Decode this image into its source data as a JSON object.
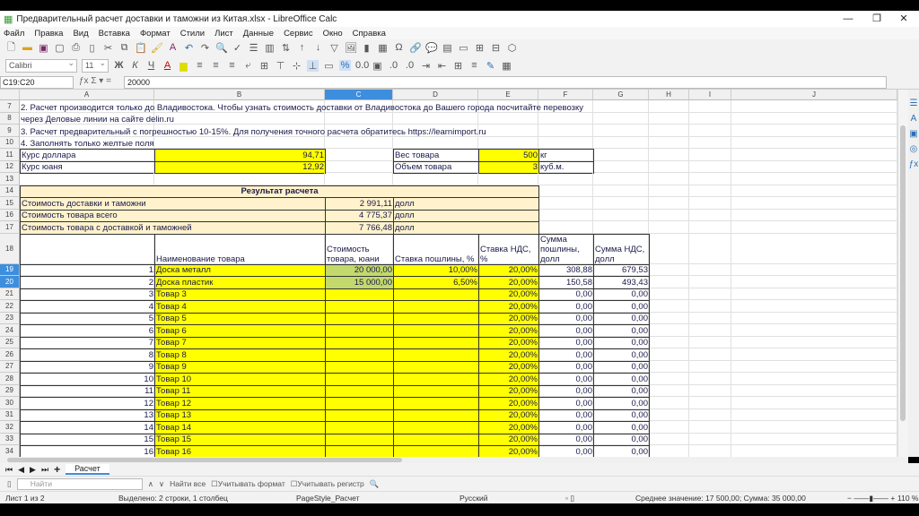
{
  "window": {
    "title": "Предварительный расчет доставки и таможни из Китая.xlsx - LibreOffice Calc"
  },
  "menu": [
    "Файл",
    "Правка",
    "Вид",
    "Вставка",
    "Формат",
    "Стили",
    "Лист",
    "Данные",
    "Сервис",
    "Окно",
    "Справка"
  ],
  "toolbar2": {
    "font": "Calibri",
    "size": "11"
  },
  "formula_bar": {
    "name_box": "C19:C20",
    "value": "20000"
  },
  "columns": [
    "A",
    "B",
    "C",
    "D",
    "E",
    "F",
    "G",
    "H",
    "I",
    "J"
  ],
  "active_column": "C",
  "rows": [
    {
      "n": "7",
      "cells": {
        "A": "2. Расчет производится только до Владивостока. Чтобы узнать стоимость доставки от Владивостока до Вашего города посчитайте перевозку"
      }
    },
    {
      "n": "8",
      "cells": {
        "A": "через Деловые линии на сайте delin.ru"
      }
    },
    {
      "n": "9",
      "cells": {
        "A": "3. Расчет предварительный с погрешностью 10-15%. Для получения точного расчета обратитесь https://learnimport.ru"
      }
    },
    {
      "n": "10",
      "cells": {
        "A": "4. Заполнять только желтые поля"
      }
    },
    {
      "n": "11",
      "cells": {
        "A": "Курс доллара",
        "B": "94,71",
        "D": "Вес товара",
        "E": "500",
        "F": "кг"
      }
    },
    {
      "n": "12",
      "cells": {
        "A": "Курс юаня",
        "B": "12,92",
        "D": "Объем товара",
        "E": "3",
        "F": "куб.м."
      }
    },
    {
      "n": "13",
      "cells": {}
    },
    {
      "n": "14",
      "cells": {
        "A": "Результат расчета"
      }
    },
    {
      "n": "15",
      "cells": {
        "A": "Стоимость доставки и таможни",
        "C": "2 991,11",
        "D": "долл"
      }
    },
    {
      "n": "16",
      "cells": {
        "A": "Стоимость товара всего",
        "C": "4 775,37",
        "D": "долл"
      }
    },
    {
      "n": "17",
      "cells": {
        "A": "Стоимость товара с доставкой и таможней",
        "C": "7 766,48",
        "D": "долл"
      }
    },
    {
      "n": "18",
      "cells": {
        "B": "Наименование товара",
        "C": "Стоимость товара, юани",
        "D": "Ставка пошлины, %",
        "E": "Ставка НДС, %",
        "F": "Сумма пошлины, долл",
        "G": "Сумма НДС, долл"
      }
    },
    {
      "n": "19",
      "cells": {
        "A": "1",
        "B": "Доска металл",
        "C": "20 000,00",
        "D": "10,00%",
        "E": "20,00%",
        "F": "308,88",
        "G": "679,53"
      }
    },
    {
      "n": "20",
      "cells": {
        "A": "2",
        "B": "Доска пластик",
        "C": "15 000,00",
        "D": "6,50%",
        "E": "20,00%",
        "F": "150,58",
        "G": "493,43"
      }
    },
    {
      "n": "21",
      "cells": {
        "A": "3",
        "B": "Товар 3",
        "E": "20,00%",
        "F": "0,00",
        "G": "0,00"
      }
    },
    {
      "n": "22",
      "cells": {
        "A": "4",
        "B": "Товар 4",
        "E": "20,00%",
        "F": "0,00",
        "G": "0,00"
      }
    },
    {
      "n": "23",
      "cells": {
        "A": "5",
        "B": "Товар 5",
        "E": "20,00%",
        "F": "0,00",
        "G": "0,00"
      }
    },
    {
      "n": "24",
      "cells": {
        "A": "6",
        "B": "Товар 6",
        "E": "20,00%",
        "F": "0,00",
        "G": "0,00"
      }
    },
    {
      "n": "25",
      "cells": {
        "A": "7",
        "B": "Товар 7",
        "E": "20,00%",
        "F": "0,00",
        "G": "0,00"
      }
    },
    {
      "n": "26",
      "cells": {
        "A": "8",
        "B": "Товар 8",
        "E": "20,00%",
        "F": "0,00",
        "G": "0,00"
      }
    },
    {
      "n": "27",
      "cells": {
        "A": "9",
        "B": "Товар 9",
        "E": "20,00%",
        "F": "0,00",
        "G": "0,00"
      }
    },
    {
      "n": "28",
      "cells": {
        "A": "10",
        "B": "Товар 10",
        "E": "20,00%",
        "F": "0,00",
        "G": "0,00"
      }
    },
    {
      "n": "29",
      "cells": {
        "A": "11",
        "B": "Товар 11",
        "E": "20,00%",
        "F": "0,00",
        "G": "0,00"
      }
    },
    {
      "n": "30",
      "cells": {
        "A": "12",
        "B": "Товар 12",
        "E": "20,00%",
        "F": "0,00",
        "G": "0,00"
      }
    },
    {
      "n": "31",
      "cells": {
        "A": "13",
        "B": "Товар 13",
        "E": "20,00%",
        "F": "0,00",
        "G": "0,00"
      }
    },
    {
      "n": "32",
      "cells": {
        "A": "14",
        "B": "Товар 14",
        "E": "20,00%",
        "F": "0,00",
        "G": "0,00"
      }
    },
    {
      "n": "33",
      "cells": {
        "A": "15",
        "B": "Товар 15",
        "E": "20,00%",
        "F": "0,00",
        "G": "0,00"
      }
    },
    {
      "n": "34",
      "cells": {
        "A": "16",
        "B": "Товар 16",
        "E": "20,00%",
        "F": "0,00",
        "G": "0,00"
      }
    }
  ],
  "selected_rows": [
    "19",
    "20"
  ],
  "colors": {
    "input_yellow": "#ffff00",
    "result_bg": "#fff2cc",
    "selection": "#c3d96b",
    "accent": "#3e8ede"
  },
  "sheet_tabs": [
    "Расчет"
  ],
  "findbar": {
    "placeholder": "Найти",
    "find_all": "Найти все",
    "match_format": "Учитывать формат",
    "match_case": "Учитывать регистр"
  },
  "status": {
    "sheet": "Лист 1 из 2",
    "selection": "Выделено: 2 строки, 1 столбец",
    "page_style": "PageStyle_Расчет",
    "language": "Русский",
    "summary": "Среднее значение: 17 500,00; Сумма: 35 000,00",
    "zoom": "110 %"
  }
}
